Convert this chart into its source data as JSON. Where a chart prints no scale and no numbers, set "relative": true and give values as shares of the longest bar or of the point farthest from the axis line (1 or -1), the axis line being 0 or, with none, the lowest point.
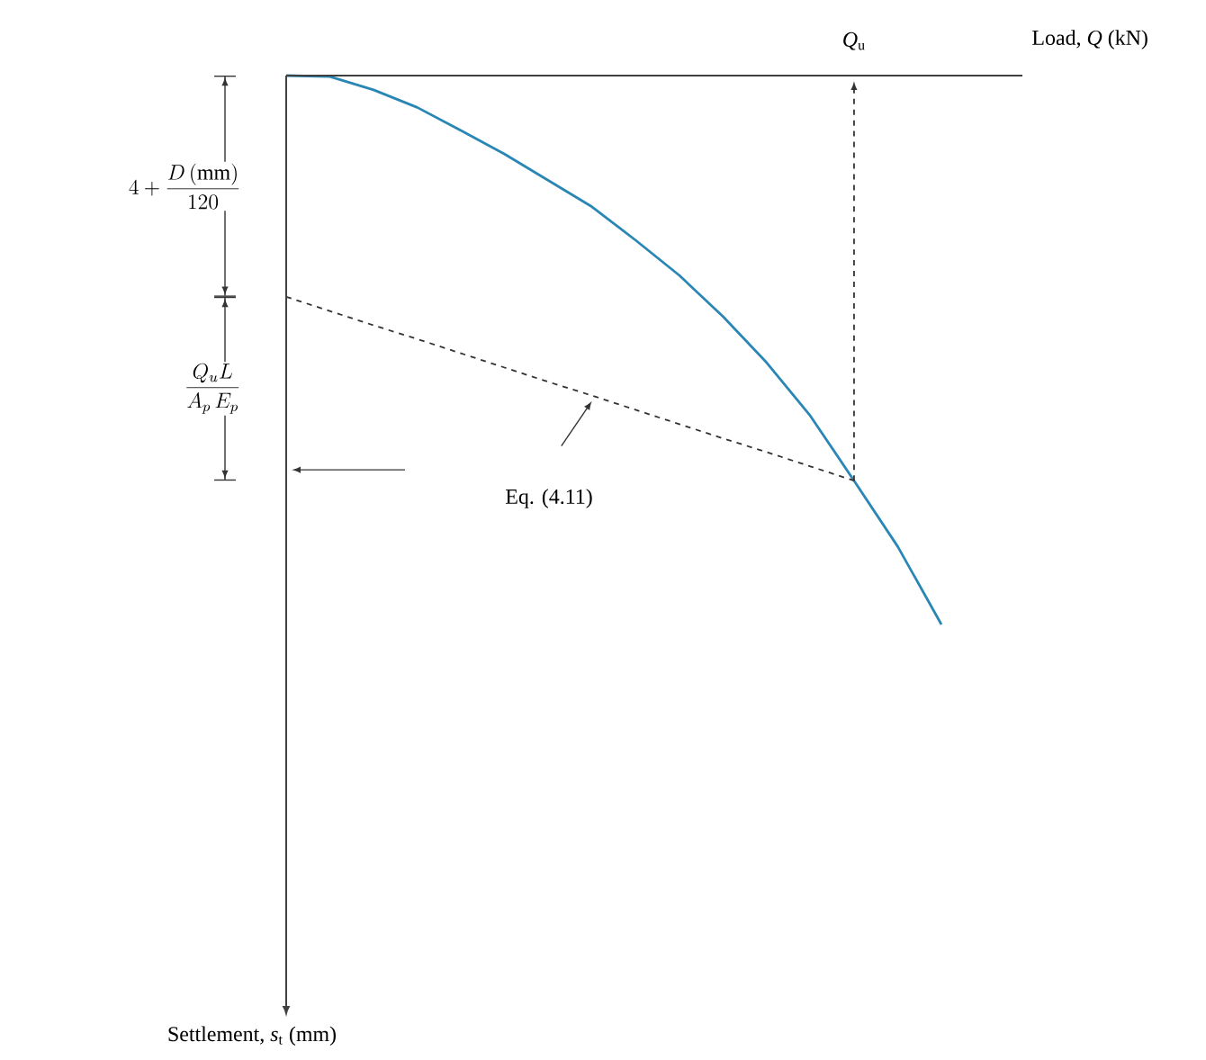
{
  "chart_data": {
    "type": "line",
    "relative": true,
    "xlabel": "Load, *Q* (kN)",
    "categories": [
      null,
      null,
      null,
      null,
      null,
      null,
      null,
      null,
      null,
      null,
      null,
      null,
      null,
      null,
      null,
      null
    ],
    "series": [
      {
        "color": "#2a87b5",
        "line_style": "solid",
        "values": [
          0,
          -0.002,
          -0.026,
          -0.058,
          -0.1,
          -0.143,
          -0.191,
          -0.239,
          -0.3,
          -0.364,
          -0.439,
          -0.523,
          -0.62,
          -0.738,
          -0.858,
          -1
        ]
      },
      {
        "color": "#333333",
        "line_style": "dashed",
        "values": [
          -0.403,
          -0.429,
          -0.455,
          -0.48,
          -0.506,
          -0.532,
          -0.558,
          -0.583,
          -0.609,
          -0.635,
          -0.661,
          -0.686,
          -0.712,
          -0.738,
          null,
          null
        ]
      }
    ],
    "annotations": [
      "*Q*$_{u}$",
      "4+\\frac{D\\,(\\mathrm{mm})}{120}",
      "\\frac{Q_{u}L}{A_{p}\\,E_{p}}",
      "Eq. (4.11)",
      "Settlement, *s*$_{t}$ (mm)"
    ]
  }
}
